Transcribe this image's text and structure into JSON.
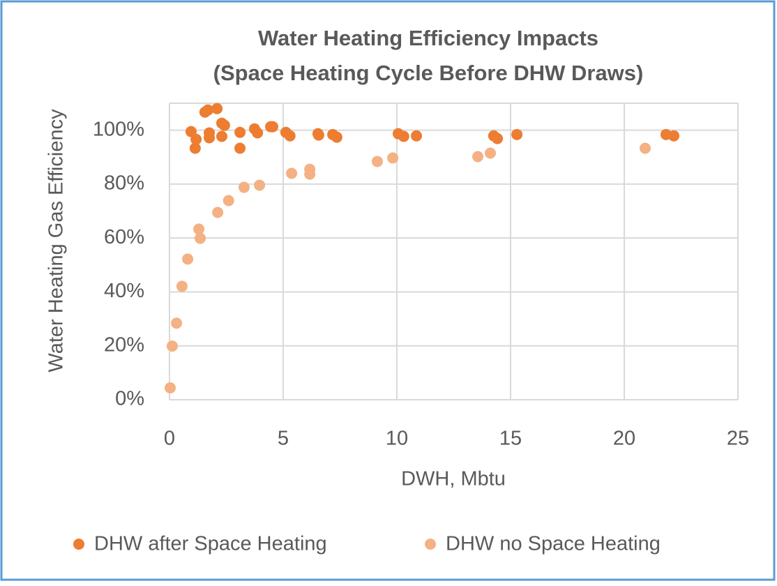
{
  "chart_data": {
    "type": "scatter",
    "title": [
      "Water Heating Efficiency Impacts",
      "(Space Heating Cycle Before DHW Draws)"
    ],
    "x_label": "DWH, Mbtu",
    "y_label": "Water Heating Gas Efficiency",
    "xlim": [
      0,
      25
    ],
    "xticks": [
      0,
      5,
      10,
      15,
      20,
      25
    ],
    "ylim": [
      0,
      110
    ],
    "yticks": [
      {
        "value": 0,
        "label": "0%"
      },
      {
        "value": 20,
        "label": "20%"
      },
      {
        "value": 40,
        "label": "40%"
      },
      {
        "value": 60,
        "label": "60%"
      },
      {
        "value": 80,
        "label": "80%"
      },
      {
        "value": 100,
        "label": "100%"
      }
    ],
    "grid": true,
    "legend": "bottom",
    "series": [
      {
        "name": "DHW after Space Heating",
        "color": "#ed7d31",
        "x": [
          0.95,
          1.13,
          1.17,
          1.56,
          1.69,
          1.75,
          1.75,
          2.09,
          2.3,
          2.42,
          2.3,
          3.1,
          3.1,
          3.74,
          3.87,
          4.45,
          4.54,
          5.12,
          5.3,
          6.53,
          6.56,
          7.18,
          7.36,
          10.06,
          10.3,
          10.86,
          14.26,
          14.42,
          15.28,
          21.84,
          22.18
        ],
        "values": [
          99.5,
          93.3,
          96.6,
          106.7,
          107.5,
          99,
          97.2,
          108,
          102.6,
          101.8,
          97.7,
          99.2,
          93.3,
          100.5,
          99,
          101.3,
          101.3,
          99.2,
          97.9,
          98.7,
          98.2,
          98.4,
          97.4,
          98.7,
          97.7,
          97.9,
          97.9,
          96.9,
          98.4,
          98.4,
          97.9
        ]
      },
      {
        "name": "DHW no Space Heating",
        "color": "#f4b183",
        "x": [
          0.03,
          0.12,
          0.31,
          0.55,
          0.8,
          1.29,
          1.35,
          2.12,
          2.6,
          3.28,
          3.96,
          5.37,
          6.17,
          6.17,
          9.14,
          9.82,
          13.56,
          14.11,
          20.92
        ],
        "values": [
          4.4,
          19.9,
          28.4,
          42.1,
          52.2,
          63.3,
          59.9,
          69.5,
          73.9,
          78.8,
          79.6,
          84,
          85.5,
          83.7,
          88.4,
          89.7,
          90.2,
          91.5,
          93.3
        ]
      }
    ]
  }
}
